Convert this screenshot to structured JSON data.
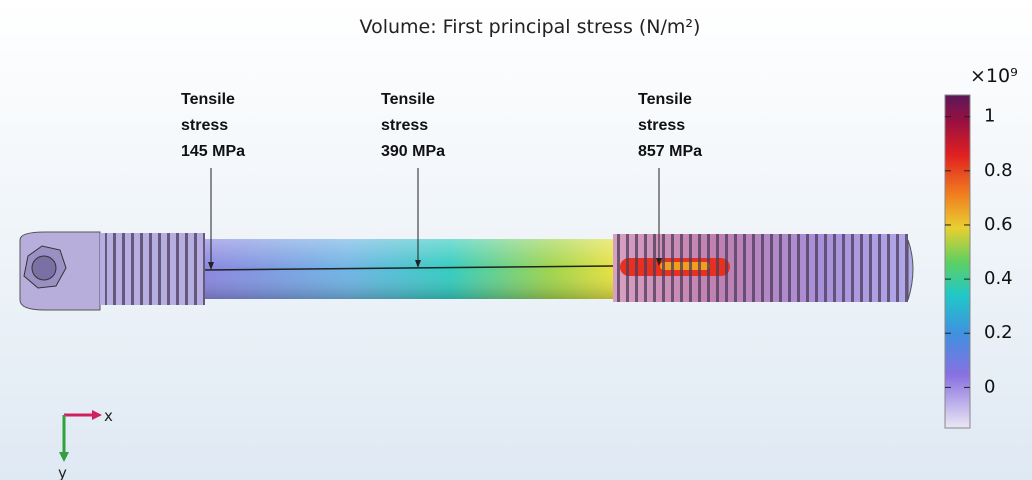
{
  "title": "Volume: First principal stress (N/m²)",
  "annotations": [
    {
      "lines": [
        "Tensile",
        "stress",
        "145 MPa"
      ]
    },
    {
      "lines": [
        "Tensile",
        "stress",
        "390 MPa"
      ]
    },
    {
      "lines": [
        "Tensile",
        "stress",
        "857 MPa"
      ]
    }
  ],
  "colorbar": {
    "multiplier": "×10⁹",
    "lim": [
      -0.15,
      1.08
    ],
    "ticks": [
      0,
      0.2,
      0.4,
      0.6,
      0.8,
      1
    ]
  },
  "axes_triad": {
    "x_label": "x",
    "y_label": "y"
  }
}
